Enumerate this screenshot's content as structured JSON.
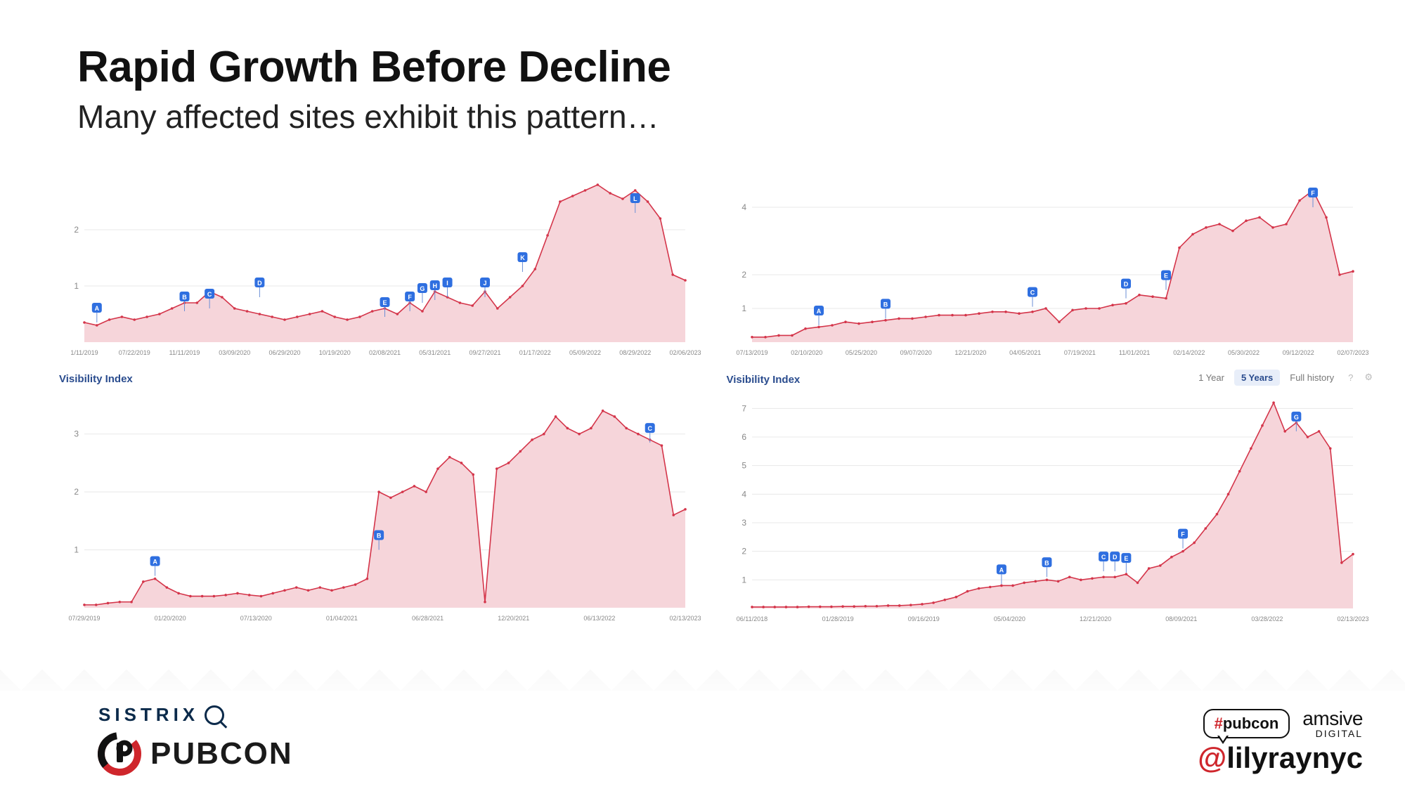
{
  "title": "Rapid Growth Before Decline",
  "subtitle": "Many affected sites exhibit this pattern…",
  "colors": {
    "line": "#d4354a",
    "fill": "#f6d5da",
    "marker": "#d4354a",
    "grid": "#e8e8e8",
    "axis_text": "#888888",
    "badge_bg": "#2f6fe0",
    "badge_text": "#ffffff"
  },
  "visibility_label": "Visibility Index",
  "time_toggle": {
    "options": [
      "1 Year",
      "5 Years",
      "Full history"
    ],
    "active": "5 Years"
  },
  "charts": {
    "topLeft": {
      "type": "area",
      "ylim": [
        0,
        3
      ],
      "yticks": [
        1,
        2
      ],
      "x_labels": [
        "1/11/2019",
        "07/22/2019",
        "11/11/2019",
        "03/09/2020",
        "06/29/2020",
        "10/19/2020",
        "02/08/2021",
        "05/31/2021",
        "09/27/2021",
        "01/17/2022",
        "05/09/2022",
        "08/29/2022",
        "02/06/2023"
      ],
      "values": [
        0.35,
        0.3,
        0.4,
        0.45,
        0.4,
        0.45,
        0.5,
        0.6,
        0.7,
        0.7,
        0.9,
        0.8,
        0.6,
        0.55,
        0.5,
        0.45,
        0.4,
        0.45,
        0.5,
        0.55,
        0.45,
        0.4,
        0.45,
        0.55,
        0.6,
        0.5,
        0.7,
        0.55,
        0.9,
        0.8,
        0.7,
        0.65,
        0.9,
        0.6,
        0.8,
        1.0,
        1.3,
        1.9,
        2.5,
        2.6,
        2.7,
        2.8,
        2.65,
        2.55,
        2.7,
        2.5,
        2.2,
        1.2,
        1.1
      ],
      "markers": [
        {
          "x": 1,
          "y": 0.35,
          "label": "A"
        },
        {
          "x": 8,
          "y": 0.55,
          "label": "B"
        },
        {
          "x": 10,
          "y": 0.6,
          "label": "C"
        },
        {
          "x": 14,
          "y": 0.8,
          "label": "D"
        },
        {
          "x": 24,
          "y": 0.45,
          "label": "E"
        },
        {
          "x": 26,
          "y": 0.55,
          "label": "F"
        },
        {
          "x": 27,
          "y": 0.7,
          "label": "G"
        },
        {
          "x": 28,
          "y": 0.75,
          "label": "H"
        },
        {
          "x": 29,
          "y": 0.8,
          "label": "I"
        },
        {
          "x": 32,
          "y": 0.8,
          "label": "J"
        },
        {
          "x": 35,
          "y": 1.25,
          "label": "K"
        },
        {
          "x": 44,
          "y": 2.3,
          "label": "L"
        }
      ]
    },
    "topRight": {
      "type": "area",
      "ylim": [
        0,
        5
      ],
      "yticks": [
        1,
        2,
        4
      ],
      "x_labels": [
        "07/13/2019",
        "02/10/2020",
        "05/25/2020",
        "09/07/2020",
        "12/21/2020",
        "04/05/2021",
        "07/19/2021",
        "11/01/2021",
        "02/14/2022",
        "05/30/2022",
        "09/12/2022",
        "02/07/2023"
      ],
      "values": [
        0.15,
        0.15,
        0.2,
        0.2,
        0.4,
        0.45,
        0.5,
        0.6,
        0.55,
        0.6,
        0.65,
        0.7,
        0.7,
        0.75,
        0.8,
        0.8,
        0.8,
        0.85,
        0.9,
        0.9,
        0.85,
        0.9,
        1.0,
        0.6,
        0.95,
        1.0,
        1.0,
        1.1,
        1.15,
        1.4,
        1.35,
        1.3,
        2.8,
        3.2,
        3.4,
        3.5,
        3.3,
        3.6,
        3.7,
        3.4,
        3.5,
        4.2,
        4.5,
        3.7,
        2.0,
        2.1
      ],
      "markers": [
        {
          "x": 5,
          "y": 0.5,
          "label": "A"
        },
        {
          "x": 10,
          "y": 0.7,
          "label": "B"
        },
        {
          "x": 21,
          "y": 1.05,
          "label": "C"
        },
        {
          "x": 28,
          "y": 1.3,
          "label": "D"
        },
        {
          "x": 31,
          "y": 1.55,
          "label": "E"
        },
        {
          "x": 42,
          "y": 4.0,
          "label": "F"
        }
      ]
    },
    "bottomLeft": {
      "type": "area",
      "ylim": [
        0,
        3.7
      ],
      "yticks": [
        1,
        2,
        3
      ],
      "x_labels": [
        "07/29/2019",
        "01/20/2020",
        "07/13/2020",
        "01/04/2021",
        "06/28/2021",
        "12/20/2021",
        "06/13/2022",
        "02/13/2023"
      ],
      "values": [
        0.05,
        0.05,
        0.08,
        0.1,
        0.1,
        0.45,
        0.5,
        0.35,
        0.25,
        0.2,
        0.2,
        0.2,
        0.22,
        0.25,
        0.22,
        0.2,
        0.25,
        0.3,
        0.35,
        0.3,
        0.35,
        0.3,
        0.35,
        0.4,
        0.5,
        2.0,
        1.9,
        2.0,
        2.1,
        2.0,
        2.4,
        2.6,
        2.5,
        2.3,
        0.1,
        2.4,
        2.5,
        2.7,
        2.9,
        3.0,
        3.3,
        3.1,
        3.0,
        3.1,
        3.4,
        3.3,
        3.1,
        3.0,
        2.9,
        2.8,
        1.6,
        1.7
      ],
      "markers": [
        {
          "x": 6,
          "y": 0.55,
          "label": "A"
        },
        {
          "x": 25,
          "y": 1.0,
          "label": "B"
        },
        {
          "x": 48,
          "y": 2.85,
          "label": "C"
        }
      ]
    },
    "bottomRight": {
      "type": "area",
      "ylim": [
        0,
        7.5
      ],
      "yticks": [
        1,
        2,
        3,
        4,
        5,
        6,
        7
      ],
      "x_labels": [
        "06/11/2018",
        "01/28/2019",
        "09/16/2019",
        "05/04/2020",
        "12/21/2020",
        "08/09/2021",
        "03/28/2022",
        "02/13/2023"
      ],
      "values": [
        0.05,
        0.05,
        0.05,
        0.05,
        0.05,
        0.06,
        0.06,
        0.06,
        0.07,
        0.07,
        0.08,
        0.08,
        0.1,
        0.1,
        0.12,
        0.15,
        0.2,
        0.3,
        0.4,
        0.6,
        0.7,
        0.75,
        0.8,
        0.8,
        0.9,
        0.95,
        1.0,
        0.95,
        1.1,
        1.0,
        1.05,
        1.1,
        1.1,
        1.2,
        0.9,
        1.4,
        1.5,
        1.8,
        2.0,
        2.3,
        2.8,
        3.3,
        4.0,
        4.8,
        5.6,
        6.4,
        7.2,
        6.2,
        6.5,
        6.0,
        6.2,
        5.6,
        1.6,
        1.9
      ],
      "markers": [
        {
          "x": 22,
          "y": 0.85,
          "label": "A"
        },
        {
          "x": 26,
          "y": 1.1,
          "label": "B"
        },
        {
          "x": 31,
          "y": 1.3,
          "label": "C"
        },
        {
          "x": 32,
          "y": 1.3,
          "label": "D"
        },
        {
          "x": 33,
          "y": 1.25,
          "label": "E"
        },
        {
          "x": 38,
          "y": 2.1,
          "label": "F"
        },
        {
          "x": 48,
          "y": 6.2,
          "label": "G"
        }
      ]
    }
  },
  "footer": {
    "sistrix": "SISTRIX",
    "pubcon": "PUBCON",
    "pubcon_tag_hash": "#",
    "pubcon_tag_text": "pubcon",
    "amsive_1": "amsive",
    "amsive_2": "DIGITAL",
    "handle_at": "@",
    "handle_text": "lilyraynyc"
  }
}
